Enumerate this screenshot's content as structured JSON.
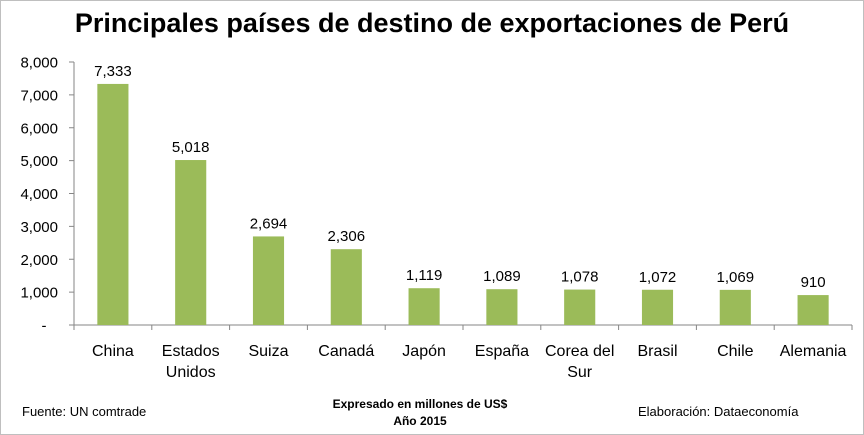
{
  "chart_data": {
    "type": "bar",
    "title": "Principales países de destino de exportaciones de Perú",
    "categories": [
      [
        "China"
      ],
      [
        "Estados",
        "Unidos"
      ],
      [
        "Suiza"
      ],
      [
        "Canadá"
      ],
      [
        "Japón"
      ],
      [
        "España"
      ],
      [
        "Corea del",
        "Sur"
      ],
      [
        "Brasil"
      ],
      [
        "Chile"
      ],
      [
        "Alemania"
      ]
    ],
    "values": [
      7333,
      5018,
      2694,
      2306,
      1119,
      1089,
      1078,
      1072,
      1069,
      910
    ],
    "value_labels": [
      "7,333",
      "5,018",
      "2,694",
      "2,306",
      "1,119",
      "1,089",
      "1,078",
      "1,072",
      "1,069",
      "910"
    ],
    "ylim": [
      0,
      8000
    ],
    "yticks": [
      0,
      1000,
      2000,
      3000,
      4000,
      5000,
      6000,
      7000,
      8000
    ],
    "ytick_labels": [
      "-",
      "1,000",
      "2,000",
      "3,000",
      "4,000",
      "5,000",
      "6,000",
      "7,000",
      "8,000"
    ],
    "xlabel": "",
    "ylabel": "",
    "grid": false,
    "legend": "none",
    "bar_color": "#9bbb59"
  },
  "footer": {
    "source": "Fuente: UN comtrade",
    "unit_note": "Expresado en millones de US$",
    "year_note": "Año 2015",
    "credit": "Elaboración: Dataeconomía"
  }
}
